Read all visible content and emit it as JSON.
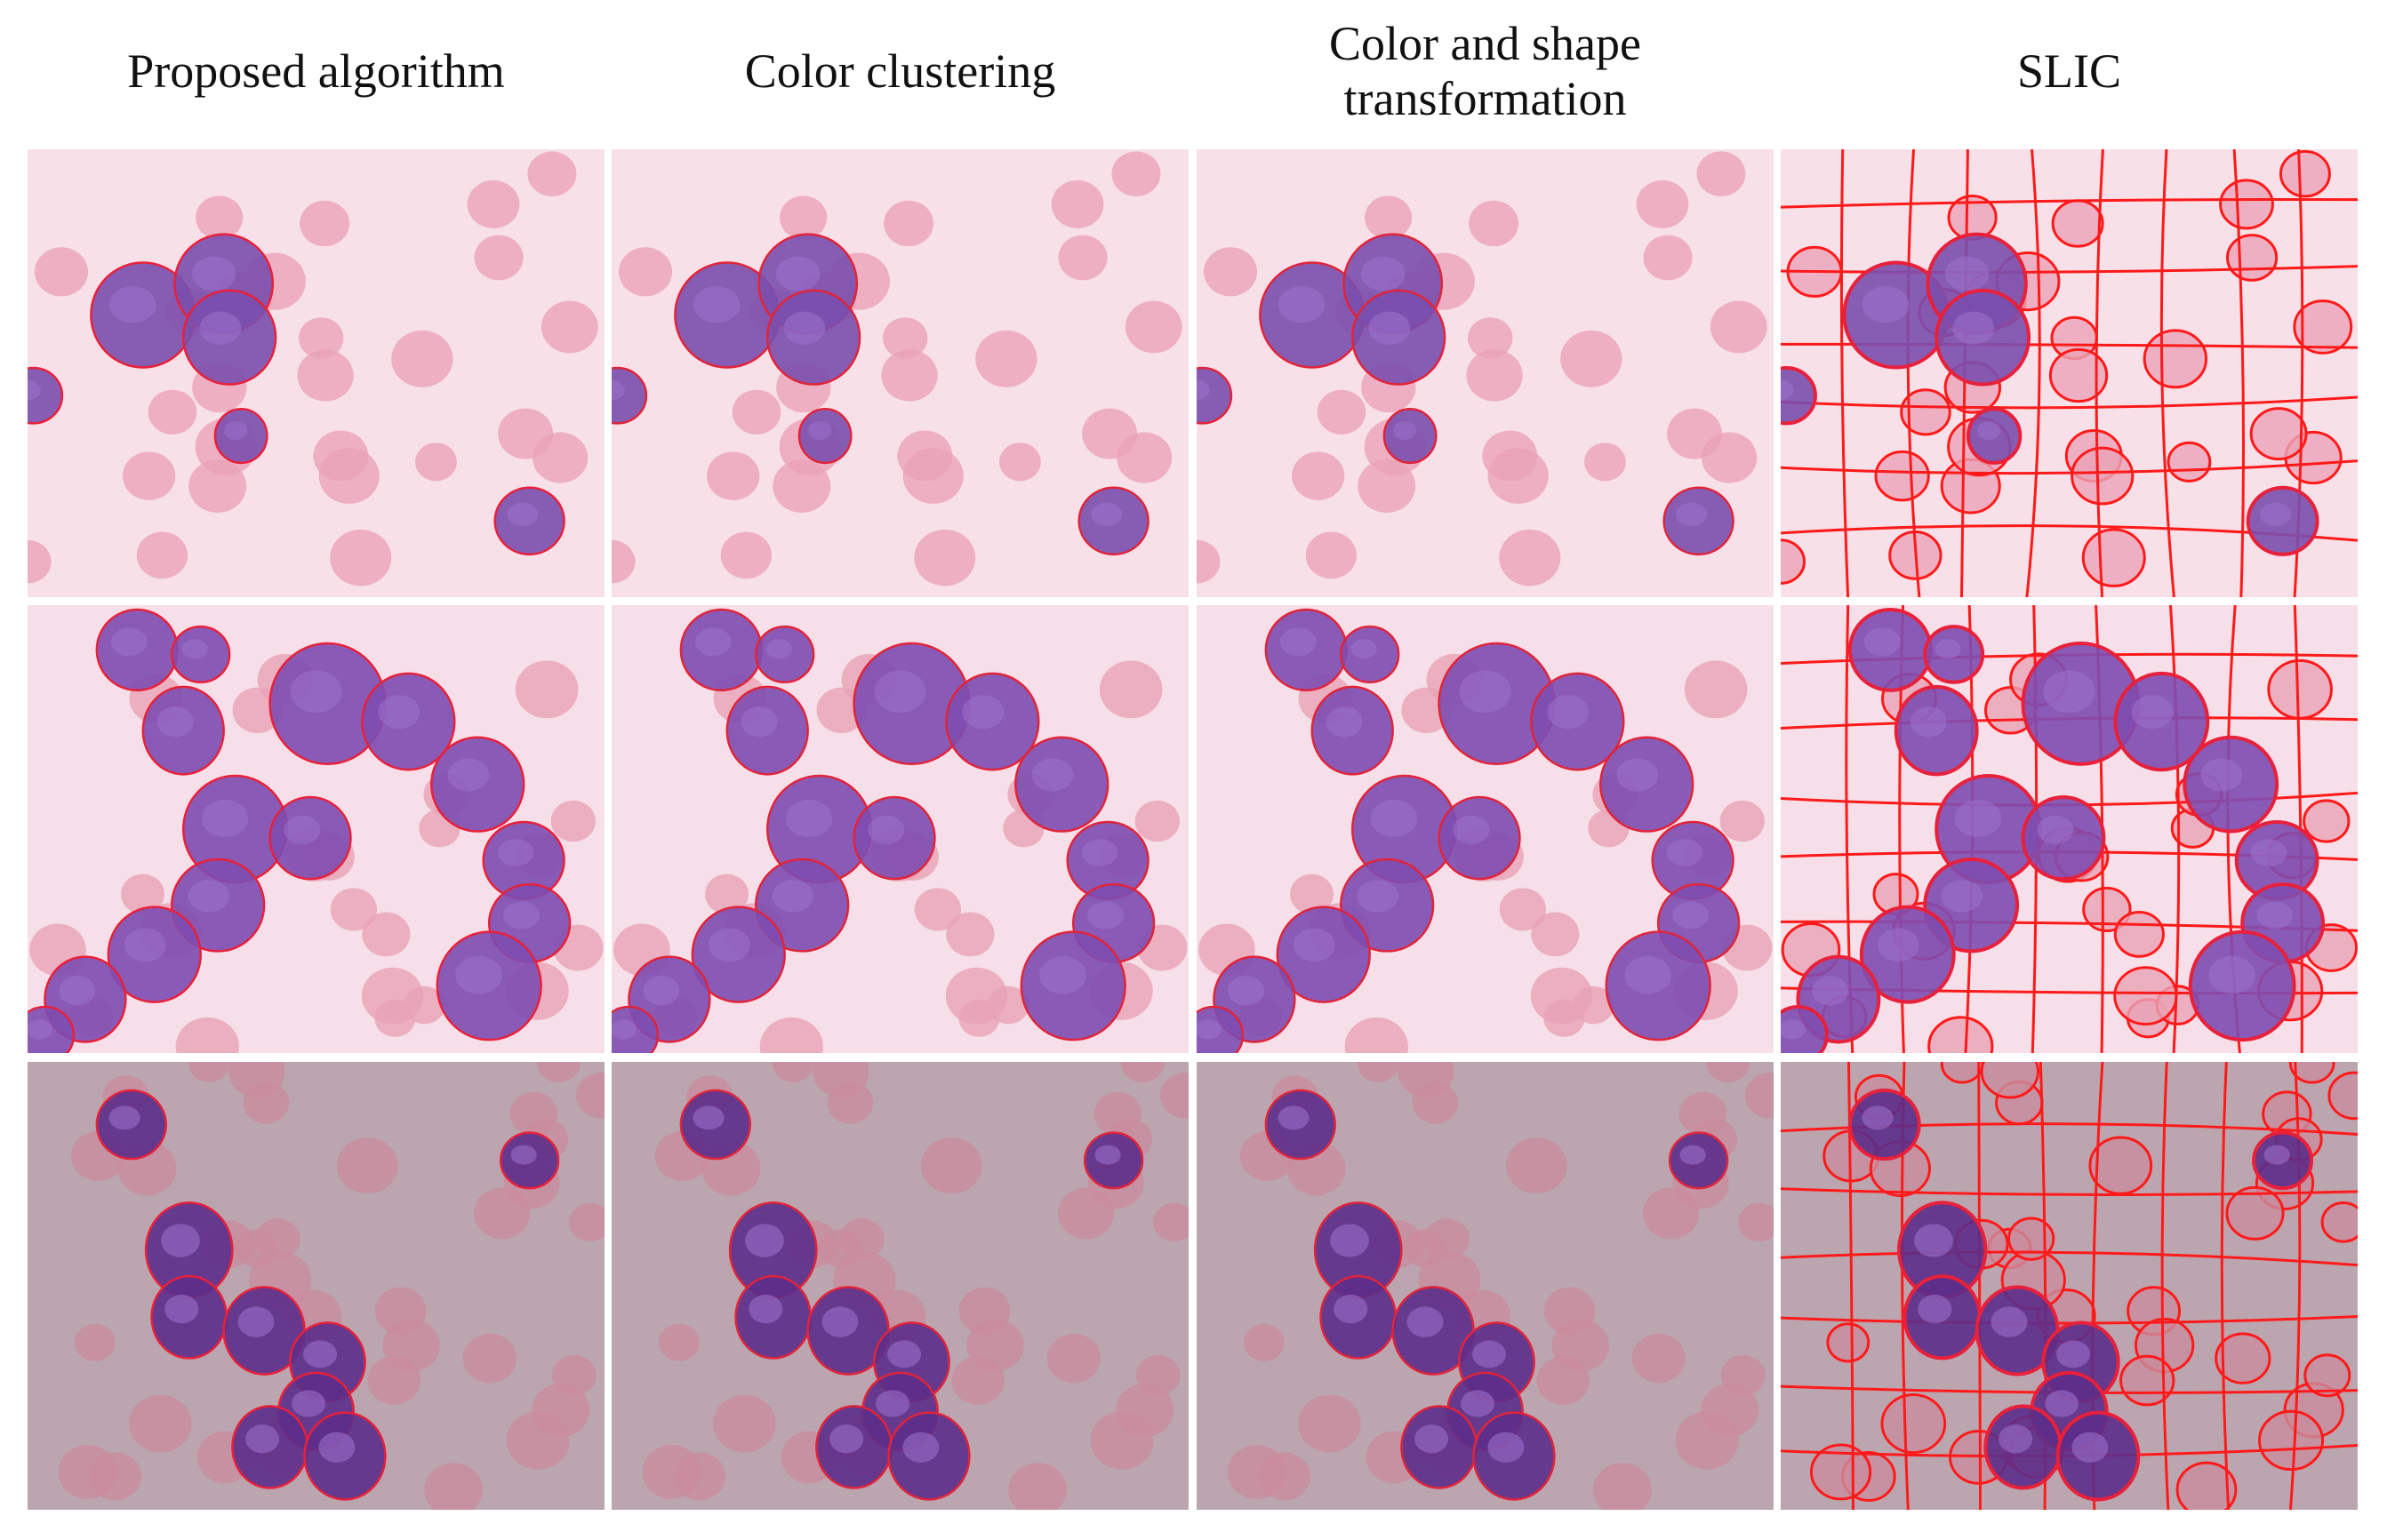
{
  "columns": [
    {
      "title": "Proposed algorithm"
    },
    {
      "title": "Color clustering"
    },
    {
      "title": "Color and shape transformation"
    },
    {
      "title": "SLIC"
    }
  ]
}
